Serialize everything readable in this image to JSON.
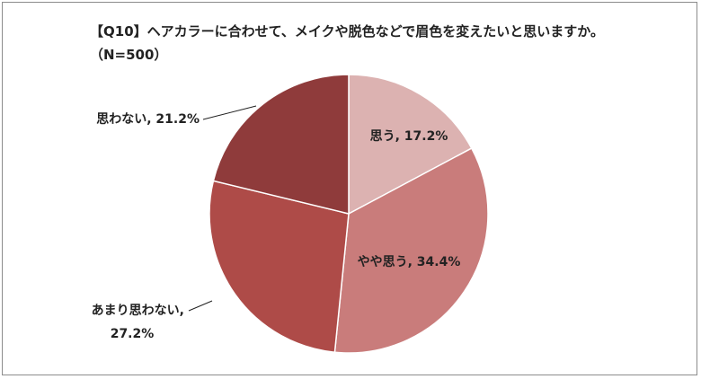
{
  "chart_data": {
    "type": "pie",
    "title": "【Q10】ヘアカラーに合わせて、メイクや脱色などで眉色を変えたいと思いますか。（N=500）",
    "values": [
      17.2,
      34.4,
      27.2,
      21.2
    ],
    "value_labels": [
      [
        "思う, 17.2%"
      ],
      [
        "やや思う, 34.4%"
      ],
      [
        "あまり思わない,",
        "27.2%"
      ],
      [
        "思わない, 21.2%"
      ]
    ],
    "colors": [
      "#dcb2b1",
      "#c97c7b",
      "#ae4b48",
      "#8f3b3b"
    ]
  }
}
